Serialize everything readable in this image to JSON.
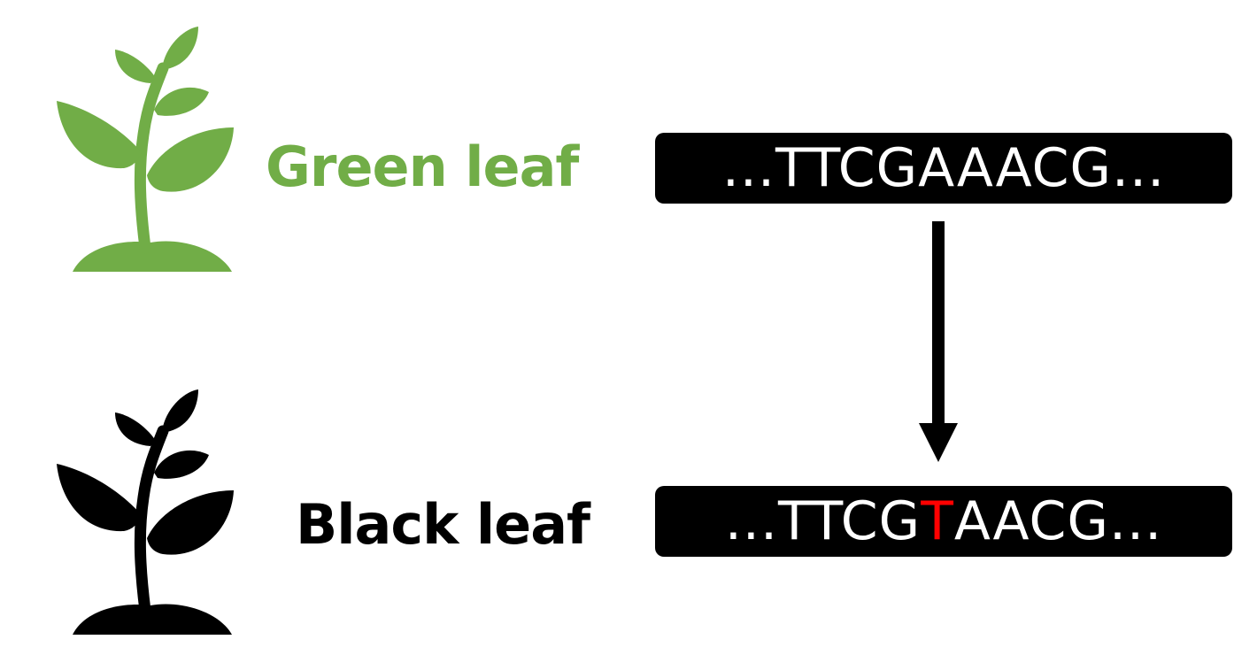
{
  "colors": {
    "green": "#71ad47",
    "black": "#000000",
    "mutation": "#ff0000",
    "sequence_text": "#ffffff"
  },
  "rows": [
    {
      "icon": "plant-icon",
      "label": "Green leaf",
      "sequence": {
        "prefix": "...TTCGAAACG...",
        "mutated_base": "",
        "suffix": ""
      }
    },
    {
      "icon": "plant-icon",
      "label": "Black leaf",
      "sequence": {
        "prefix": "...TTCG",
        "mutated_base": "T",
        "suffix": "AACG..."
      }
    }
  ],
  "arrow": {
    "icon": "down-arrow-icon"
  }
}
